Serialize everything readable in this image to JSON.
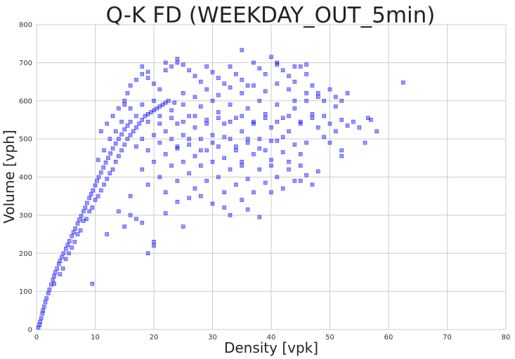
{
  "chart_data": {
    "type": "scatter",
    "title": "Q-K FD (WEEKDAY_OUT_5min)",
    "xlabel": "Density [vpk]",
    "ylabel": "Volume [vph]",
    "xlim": [
      0,
      80
    ],
    "ylim": [
      0,
      800
    ],
    "xticks": [
      "0",
      "10",
      "20",
      "30",
      "40",
      "50",
      "60",
      "70",
      "80"
    ],
    "yticks": [
      "0",
      "100",
      "200",
      "300",
      "400",
      "500",
      "600",
      "700",
      "800"
    ],
    "grid": true,
    "marker": "square",
    "marker_color": "#0000ff",
    "marker_alpha": 0.4,
    "series": [
      {
        "points": [
          [
            0.3,
            5
          ],
          [
            0.5,
            12
          ],
          [
            0.6,
            20
          ],
          [
            0.8,
            30
          ],
          [
            1.0,
            42
          ],
          [
            1.1,
            50
          ],
          [
            1.3,
            60
          ],
          [
            1.5,
            72
          ],
          [
            1.7,
            82
          ],
          [
            2.0,
            95
          ],
          [
            2.2,
            105
          ],
          [
            2.5,
            118
          ],
          [
            2.8,
            130
          ],
          [
            3.0,
            140
          ],
          [
            3.2,
            150
          ],
          [
            3.5,
            160
          ],
          [
            3.8,
            172
          ],
          [
            4.0,
            180
          ],
          [
            4.3,
            190
          ],
          [
            4.6,
            200
          ],
          [
            5.0,
            212
          ],
          [
            5.3,
            222
          ],
          [
            5.6,
            232
          ],
          [
            6.0,
            245
          ],
          [
            6.3,
            255
          ],
          [
            6.6,
            265
          ],
          [
            7.0,
            278
          ],
          [
            7.3,
            288
          ],
          [
            7.6,
            298
          ],
          [
            8.0,
            310
          ],
          [
            8.3,
            320
          ],
          [
            8.6,
            332
          ],
          [
            9.0,
            345
          ],
          [
            9.3,
            355
          ],
          [
            9.6,
            365
          ],
          [
            10.0,
            378
          ],
          [
            10.3,
            390
          ],
          [
            10.6,
            400
          ],
          [
            11.0,
            412
          ],
          [
            11.4,
            425
          ],
          [
            11.8,
            438
          ],
          [
            12.2,
            450
          ],
          [
            12.6,
            462
          ],
          [
            13.0,
            475
          ],
          [
            13.5,
            488
          ],
          [
            14.0,
            500
          ],
          [
            14.5,
            512
          ],
          [
            15.0,
            525
          ],
          [
            15.5,
            535
          ],
          [
            16.0,
            545
          ],
          [
            4.5,
            160
          ],
          [
            5.5,
            200
          ],
          [
            6.5,
            230
          ],
          [
            7.5,
            260
          ],
          [
            8.5,
            290
          ],
          [
            9.5,
            320
          ],
          [
            10.5,
            350
          ],
          [
            11.5,
            380
          ],
          [
            12.5,
            410
          ],
          [
            13.5,
            440
          ],
          [
            14.5,
            470
          ],
          [
            15.5,
            500
          ],
          [
            16.5,
            520
          ],
          [
            17.5,
            540
          ],
          [
            18.5,
            560
          ],
          [
            19.5,
            570
          ],
          [
            20.5,
            580
          ],
          [
            21.5,
            590
          ],
          [
            22.5,
            600
          ],
          [
            23.5,
            595
          ],
          [
            3.0,
            120
          ],
          [
            4.0,
            145
          ],
          [
            5.0,
            185
          ],
          [
            6.0,
            215
          ],
          [
            7.0,
            250
          ],
          [
            8.0,
            285
          ],
          [
            9.0,
            310
          ],
          [
            10.0,
            340
          ],
          [
            11.0,
            365
          ],
          [
            12.0,
            395
          ],
          [
            13.0,
            420
          ],
          [
            14.0,
            455
          ],
          [
            15.0,
            485
          ],
          [
            16.0,
            510
          ],
          [
            17.0,
            530
          ],
          [
            18.0,
            550
          ],
          [
            19.0,
            565
          ],
          [
            20.0,
            575
          ],
          [
            21.0,
            585
          ],
          [
            22.0,
            595
          ],
          [
            15,
            600
          ],
          [
            15.5,
            620
          ],
          [
            16,
            640
          ],
          [
            17,
            655
          ],
          [
            18,
            670
          ],
          [
            19,
            660
          ],
          [
            20,
            645
          ],
          [
            21,
            630
          ],
          [
            22,
            680
          ],
          [
            23,
            690
          ],
          [
            24,
            700
          ],
          [
            25,
            695
          ],
          [
            26,
            680
          ],
          [
            27,
            665
          ],
          [
            28,
            650
          ],
          [
            29,
            690
          ],
          [
            30,
            675
          ],
          [
            31,
            660
          ],
          [
            32,
            645
          ],
          [
            33,
            690
          ],
          [
            34,
            670
          ],
          [
            35,
            655
          ],
          [
            36,
            640
          ],
          [
            37,
            700
          ],
          [
            38,
            685
          ],
          [
            39,
            670
          ],
          [
            40,
            715
          ],
          [
            41,
            695
          ],
          [
            42,
            680
          ],
          [
            43,
            665
          ],
          [
            44,
            650
          ],
          [
            45,
            690
          ],
          [
            46,
            670
          ],
          [
            47,
            640
          ],
          [
            48,
            620
          ],
          [
            49,
            600
          ],
          [
            50,
            630
          ],
          [
            51,
            610
          ],
          [
            52,
            600
          ],
          [
            53,
            620
          ],
          [
            16,
            580
          ],
          [
            17,
            560
          ],
          [
            18,
            590
          ],
          [
            19,
            545
          ],
          [
            20,
            600
          ],
          [
            21,
            560
          ],
          [
            22,
            520
          ],
          [
            23,
            575
          ],
          [
            24,
            540
          ],
          [
            25,
            590
          ],
          [
            26,
            560
          ],
          [
            27,
            530
          ],
          [
            28,
            585
          ],
          [
            29,
            550
          ],
          [
            30,
            600
          ],
          [
            31,
            570
          ],
          [
            32,
            540
          ],
          [
            33,
            590
          ],
          [
            34,
            555
          ],
          [
            35,
            520
          ],
          [
            36,
            580
          ],
          [
            37,
            545
          ],
          [
            38,
            600
          ],
          [
            39,
            565
          ],
          [
            40,
            530
          ],
          [
            41,
            590
          ],
          [
            42,
            555
          ],
          [
            43,
            520
          ],
          [
            44,
            580
          ],
          [
            45,
            545
          ],
          [
            46,
            600
          ],
          [
            47,
            565
          ],
          [
            48,
            530
          ],
          [
            49,
            560
          ],
          [
            50,
            540
          ],
          [
            51,
            520
          ],
          [
            52,
            550
          ],
          [
            53,
            535
          ],
          [
            54,
            545
          ],
          [
            55,
            530
          ],
          [
            17,
            480
          ],
          [
            18,
            500
          ],
          [
            19,
            470
          ],
          [
            20,
            510
          ],
          [
            21,
            490
          ],
          [
            22,
            460
          ],
          [
            23,
            500
          ],
          [
            24,
            475
          ],
          [
            25,
            510
          ],
          [
            26,
            485
          ],
          [
            27,
            455
          ],
          [
            28,
            500
          ],
          [
            29,
            470
          ],
          [
            30,
            510
          ],
          [
            31,
            480
          ],
          [
            32,
            450
          ],
          [
            33,
            500
          ],
          [
            34,
            470
          ],
          [
            35,
            440
          ],
          [
            36,
            490
          ],
          [
            37,
            460
          ],
          [
            38,
            500
          ],
          [
            39,
            470
          ],
          [
            40,
            445
          ],
          [
            41,
            495
          ],
          [
            42,
            465
          ],
          [
            43,
            440
          ],
          [
            44,
            485
          ],
          [
            45,
            460
          ],
          [
            46,
            490
          ],
          [
            18,
            420
          ],
          [
            19,
            380
          ],
          [
            20,
            440
          ],
          [
            21,
            400
          ],
          [
            22,
            360
          ],
          [
            23,
            430
          ],
          [
            24,
            390
          ],
          [
            25,
            440
          ],
          [
            26,
            410
          ],
          [
            27,
            370
          ],
          [
            28,
            430
          ],
          [
            29,
            390
          ],
          [
            30,
            440
          ],
          [
            31,
            400
          ],
          [
            32,
            360
          ],
          [
            33,
            420
          ],
          [
            34,
            380
          ],
          [
            35,
            430
          ],
          [
            36,
            395
          ],
          [
            37,
            360
          ],
          [
            38,
            420
          ],
          [
            39,
            385
          ],
          [
            40,
            430
          ],
          [
            41,
            400
          ],
          [
            42,
            370
          ],
          [
            43,
            420
          ],
          [
            44,
            390
          ],
          [
            45,
            430
          ],
          [
            46,
            405
          ],
          [
            47,
            380
          ],
          [
            15,
            270
          ],
          [
            16,
            300
          ],
          [
            17,
            290
          ],
          [
            18,
            280
          ],
          [
            19,
            200
          ],
          [
            20,
            220
          ],
          [
            25,
            270
          ],
          [
            28,
            350
          ],
          [
            30,
            330
          ],
          [
            32,
            320
          ],
          [
            33,
            300
          ],
          [
            35,
            340
          ],
          [
            38,
            295
          ],
          [
            40,
            360
          ],
          [
            45,
            390
          ],
          [
            48,
            415
          ],
          [
            9.5,
            120
          ],
          [
            12,
            250
          ],
          [
            14,
            310
          ],
          [
            16,
            350
          ],
          [
            20,
            230
          ],
          [
            22,
            305
          ],
          [
            24,
            335
          ],
          [
            26,
            345
          ],
          [
            36,
            315
          ],
          [
            50,
            490
          ],
          [
            52,
            455
          ],
          [
            56,
            490
          ],
          [
            56.5,
            555
          ],
          [
            57,
            550
          ],
          [
            58,
            520
          ],
          [
            62.5,
            648
          ],
          [
            41,
            700
          ],
          [
            44,
            690
          ],
          [
            46,
            695
          ],
          [
            35,
            733
          ],
          [
            24,
            710
          ],
          [
            22,
            700
          ],
          [
            18,
            690
          ],
          [
            19,
            676
          ],
          [
            11,
            520
          ],
          [
            12,
            540
          ],
          [
            13,
            560
          ],
          [
            14,
            580
          ],
          [
            15,
            590
          ],
          [
            12.5,
            500
          ],
          [
            13.5,
            520
          ],
          [
            14.5,
            545
          ],
          [
            11.5,
            470
          ],
          [
            10.5,
            445
          ],
          [
            25,
            620
          ],
          [
            27,
            610
          ],
          [
            29,
            630
          ],
          [
            31,
            615
          ],
          [
            33,
            635
          ],
          [
            35,
            620
          ],
          [
            37,
            640
          ],
          [
            39,
            625
          ],
          [
            41,
            645
          ],
          [
            43,
            630
          ],
          [
            24,
            480
          ],
          [
            26,
            500
          ],
          [
            28,
            470
          ],
          [
            30,
            490
          ],
          [
            32,
            505
          ],
          [
            34,
            480
          ],
          [
            36,
            500
          ],
          [
            38,
            475
          ],
          [
            40,
            495
          ],
          [
            42,
            505
          ],
          [
            21,
            540
          ],
          [
            23,
            555
          ],
          [
            25,
            545
          ],
          [
            27,
            560
          ],
          [
            29,
            540
          ],
          [
            31,
            555
          ],
          [
            33,
            545
          ],
          [
            35,
            560
          ],
          [
            37,
            540
          ],
          [
            39,
            555
          ],
          [
            41,
            545
          ],
          [
            43,
            560
          ],
          [
            45,
            540
          ],
          [
            47,
            555
          ],
          [
            49,
            505
          ],
          [
            51,
            585
          ],
          [
            52,
            470
          ],
          [
            44,
            600
          ],
          [
            46,
            620
          ],
          [
            48,
            610
          ]
        ]
      }
    ]
  }
}
